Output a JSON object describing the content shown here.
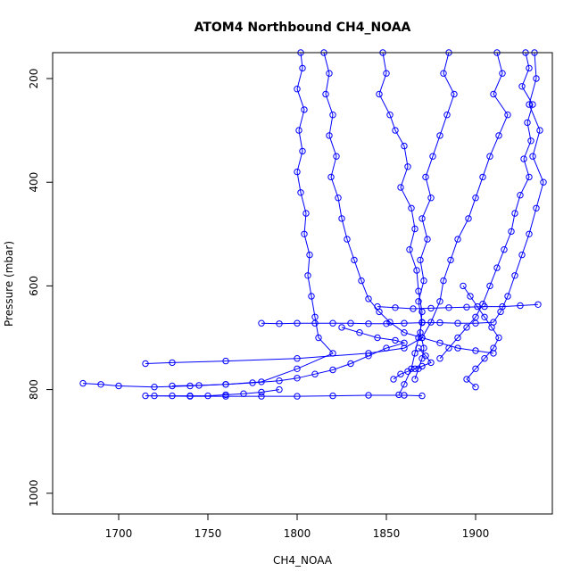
{
  "chart_data": {
    "type": "scatter",
    "title": "ATOM4 Northbound CH4_NOAA",
    "xlabel": "CH4_NOAA",
    "ylabel": "Pressure (mbar)",
    "xlim": [
      1663,
      1943
    ],
    "ylim": [
      1040,
      150
    ],
    "y_reversed": true,
    "x_ticks": [
      1700,
      1750,
      1800,
      1850,
      1900
    ],
    "y_ticks": [
      200,
      400,
      600,
      800,
      1000
    ],
    "grid": false,
    "legend": "none",
    "marker": "open-circle",
    "connect_points": true,
    "color": "#0000ff",
    "series": [
      {
        "values": [
          [
            1802,
            150
          ],
          [
            1803,
            180
          ],
          [
            1800,
            220
          ],
          [
            1804,
            260
          ],
          [
            1801,
            300
          ],
          [
            1803,
            340
          ],
          [
            1800,
            380
          ],
          [
            1802,
            420
          ],
          [
            1805,
            460
          ],
          [
            1804,
            500
          ],
          [
            1807,
            540
          ],
          [
            1806,
            580
          ],
          [
            1808,
            620
          ],
          [
            1810,
            660
          ],
          [
            1812,
            700
          ],
          [
            1820,
            730
          ],
          [
            1800,
            760
          ],
          [
            1780,
            785
          ],
          [
            1760,
            790
          ],
          [
            1740,
            793
          ],
          [
            1720,
            795
          ],
          [
            1700,
            793
          ],
          [
            1690,
            790
          ],
          [
            1680,
            788
          ]
        ]
      },
      {
        "values": [
          [
            1815,
            150
          ],
          [
            1818,
            190
          ],
          [
            1816,
            230
          ],
          [
            1820,
            270
          ],
          [
            1818,
            310
          ],
          [
            1822,
            350
          ],
          [
            1819,
            390
          ],
          [
            1823,
            430
          ],
          [
            1825,
            470
          ],
          [
            1828,
            510
          ],
          [
            1832,
            550
          ],
          [
            1836,
            590
          ],
          [
            1840,
            625
          ],
          [
            1846,
            650
          ],
          [
            1852,
            670
          ],
          [
            1860,
            690
          ],
          [
            1870,
            700
          ],
          [
            1880,
            710
          ],
          [
            1890,
            720
          ],
          [
            1900,
            725
          ],
          [
            1910,
            730
          ]
        ]
      },
      {
        "values": [
          [
            1848,
            150
          ],
          [
            1850,
            190
          ],
          [
            1846,
            230
          ],
          [
            1852,
            270
          ],
          [
            1855,
            300
          ],
          [
            1860,
            330
          ],
          [
            1862,
            370
          ],
          [
            1858,
            410
          ],
          [
            1864,
            450
          ],
          [
            1866,
            490
          ],
          [
            1863,
            530
          ],
          [
            1867,
            570
          ],
          [
            1868,
            610
          ],
          [
            1870,
            650
          ],
          [
            1869,
            690
          ],
          [
            1871,
            720
          ],
          [
            1870,
            740
          ],
          [
            1868,
            760
          ],
          [
            1866,
            780
          ]
        ]
      },
      {
        "values": [
          [
            1885,
            150
          ],
          [
            1882,
            190
          ],
          [
            1888,
            230
          ],
          [
            1884,
            270
          ],
          [
            1880,
            310
          ],
          [
            1876,
            350
          ],
          [
            1872,
            390
          ],
          [
            1875,
            430
          ],
          [
            1870,
            470
          ],
          [
            1873,
            510
          ],
          [
            1869,
            550
          ],
          [
            1871,
            590
          ],
          [
            1868,
            630
          ],
          [
            1870,
            670
          ],
          [
            1868,
            700
          ],
          [
            1866,
            730
          ],
          [
            1864,
            760
          ],
          [
            1860,
            790
          ],
          [
            1857,
            810
          ]
        ]
      },
      {
        "values": [
          [
            1912,
            150
          ],
          [
            1915,
            190
          ],
          [
            1910,
            230
          ],
          [
            1918,
            270
          ],
          [
            1913,
            310
          ],
          [
            1908,
            350
          ],
          [
            1904,
            390
          ],
          [
            1900,
            430
          ],
          [
            1896,
            470
          ],
          [
            1890,
            510
          ],
          [
            1886,
            550
          ],
          [
            1882,
            590
          ],
          [
            1880,
            630
          ],
          [
            1875,
            670
          ],
          [
            1870,
            700
          ],
          [
            1860,
            720
          ],
          [
            1840,
            730
          ],
          [
            1800,
            740
          ],
          [
            1760,
            745
          ],
          [
            1730,
            748
          ],
          [
            1715,
            750
          ]
        ]
      },
      {
        "values": [
          [
            1928,
            150
          ],
          [
            1930,
            180
          ],
          [
            1926,
            215
          ],
          [
            1932,
            250
          ],
          [
            1929,
            285
          ],
          [
            1931,
            320
          ],
          [
            1927,
            355
          ],
          [
            1930,
            390
          ],
          [
            1925,
            425
          ],
          [
            1922,
            460
          ],
          [
            1920,
            495
          ],
          [
            1916,
            530
          ],
          [
            1912,
            565
          ],
          [
            1908,
            600
          ],
          [
            1904,
            635
          ],
          [
            1900,
            660
          ],
          [
            1895,
            680
          ],
          [
            1890,
            700
          ],
          [
            1885,
            720
          ],
          [
            1880,
            740
          ]
        ]
      },
      {
        "values": [
          [
            1933,
            150
          ],
          [
            1934,
            200
          ],
          [
            1930,
            250
          ],
          [
            1936,
            300
          ],
          [
            1932,
            350
          ],
          [
            1938,
            400
          ],
          [
            1934,
            450
          ],
          [
            1930,
            500
          ],
          [
            1926,
            540
          ],
          [
            1922,
            580
          ],
          [
            1918,
            620
          ],
          [
            1914,
            650
          ],
          [
            1910,
            670
          ],
          [
            1900,
            672
          ],
          [
            1890,
            672
          ],
          [
            1880,
            671
          ],
          [
            1870,
            671
          ],
          [
            1860,
            672
          ],
          [
            1850,
            673
          ],
          [
            1840,
            673
          ],
          [
            1830,
            672
          ],
          [
            1820,
            672
          ],
          [
            1810,
            672
          ],
          [
            1800,
            672
          ],
          [
            1790,
            673
          ],
          [
            1780,
            672
          ]
        ]
      },
      {
        "values": [
          [
            1790,
            800
          ],
          [
            1780,
            805
          ],
          [
            1770,
            808
          ],
          [
            1760,
            810
          ],
          [
            1750,
            812
          ],
          [
            1740,
            812
          ],
          [
            1730,
            812
          ],
          [
            1720,
            812
          ],
          [
            1715,
            812
          ],
          [
            1740,
            813
          ],
          [
            1760,
            813
          ],
          [
            1780,
            813
          ],
          [
            1800,
            813
          ],
          [
            1820,
            812
          ],
          [
            1840,
            811
          ],
          [
            1860,
            811
          ],
          [
            1870,
            812
          ]
        ]
      },
      {
        "values": [
          [
            1845,
            640
          ],
          [
            1855,
            642
          ],
          [
            1865,
            644
          ],
          [
            1875,
            643
          ],
          [
            1885,
            642
          ],
          [
            1895,
            641
          ],
          [
            1905,
            640
          ],
          [
            1915,
            640
          ],
          [
            1925,
            638
          ],
          [
            1935,
            636
          ]
        ]
      },
      {
        "values": [
          [
            1825,
            680
          ],
          [
            1835,
            690
          ],
          [
            1845,
            700
          ],
          [
            1855,
            705
          ],
          [
            1860,
            710
          ],
          [
            1850,
            720
          ],
          [
            1840,
            735
          ],
          [
            1830,
            750
          ],
          [
            1820,
            762
          ],
          [
            1810,
            770
          ],
          [
            1800,
            778
          ],
          [
            1790,
            783
          ],
          [
            1775,
            787
          ],
          [
            1760,
            790
          ],
          [
            1745,
            792
          ],
          [
            1730,
            793
          ]
        ]
      },
      {
        "values": [
          [
            1868,
            720
          ],
          [
            1872,
            735
          ],
          [
            1875,
            748
          ],
          [
            1870,
            755
          ],
          [
            1866,
            760
          ],
          [
            1862,
            765
          ],
          [
            1858,
            770
          ],
          [
            1854,
            780
          ]
        ]
      },
      {
        "values": [
          [
            1893,
            600
          ],
          [
            1897,
            620
          ],
          [
            1901,
            640
          ],
          [
            1905,
            660
          ],
          [
            1909,
            680
          ],
          [
            1913,
            700
          ],
          [
            1910,
            720
          ],
          [
            1905,
            740
          ],
          [
            1900,
            760
          ],
          [
            1895,
            780
          ],
          [
            1900,
            795
          ]
        ]
      }
    ]
  }
}
